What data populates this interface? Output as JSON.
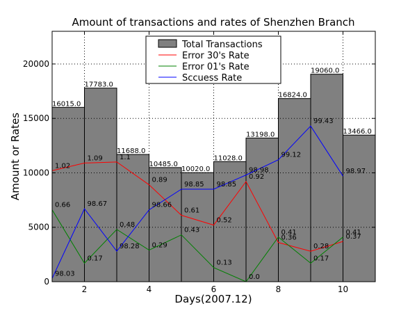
{
  "chart_data": {
    "type": "bar",
    "title": "Amount of transactions and rates of Shenzhen Branch",
    "xlabel": "Days(2007.12)",
    "ylabel": "Amount or Rates",
    "xlim": [
      1,
      11
    ],
    "ylim": [
      0,
      23000
    ],
    "xticks": [
      "2",
      "4",
      "6",
      "8",
      "10"
    ],
    "yticks": [
      "0",
      "5000",
      "10000",
      "15000",
      "20000"
    ],
    "grid": true,
    "legend_position": "top-center",
    "x": [
      1,
      2,
      3,
      4,
      5,
      6,
      7,
      8,
      9,
      10
    ],
    "bar_labels": [
      "16015.0",
      "17783.0",
      "11688.0",
      "10485.0",
      "10020.0",
      "11028.0",
      "13198.0",
      "16824.0",
      "19060.0",
      "13466.0"
    ],
    "bars": {
      "name": "Total Transactions",
      "color": "#808080",
      "values": [
        16015,
        17783,
        11688,
        10485,
        10020,
        11028,
        13198,
        16824,
        19060,
        13466
      ]
    },
    "series": [
      {
        "name": "Error 30's Rate",
        "color": "#ff0000",
        "point_labels": [
          "1.02",
          "1.09",
          "1.1",
          "0.89",
          "0.61",
          "0.52",
          "0.92",
          "0.36",
          "0.28",
          "0.37"
        ],
        "values": [
          10200,
          10900,
          11000,
          8900,
          6100,
          5200,
          9200,
          3600,
          2800,
          3700
        ]
      },
      {
        "name": "Error 01's Rate",
        "color": "#008000",
        "point_labels": [
          "0.66",
          "0.17",
          "0.48",
          "0.29",
          "0.43",
          "0.13",
          "0.0",
          "0.41",
          "0.17",
          "0.41"
        ],
        "values": [
          6600,
          1700,
          4800,
          2900,
          4300,
          1300,
          0,
          4100,
          1700,
          4100
        ]
      },
      {
        "name": "Sccuess Rate",
        "color": "#0000ff",
        "point_labels": [
          "98.03",
          "98.67",
          "98.28",
          "98.66",
          "98.85",
          "98.85",
          "98.98",
          "99.12",
          "99.43",
          "98.97"
        ],
        "values": [
          300,
          6700,
          2800,
          6600,
          8500,
          8500,
          9800,
          11200,
          14300,
          9700
        ]
      }
    ]
  }
}
